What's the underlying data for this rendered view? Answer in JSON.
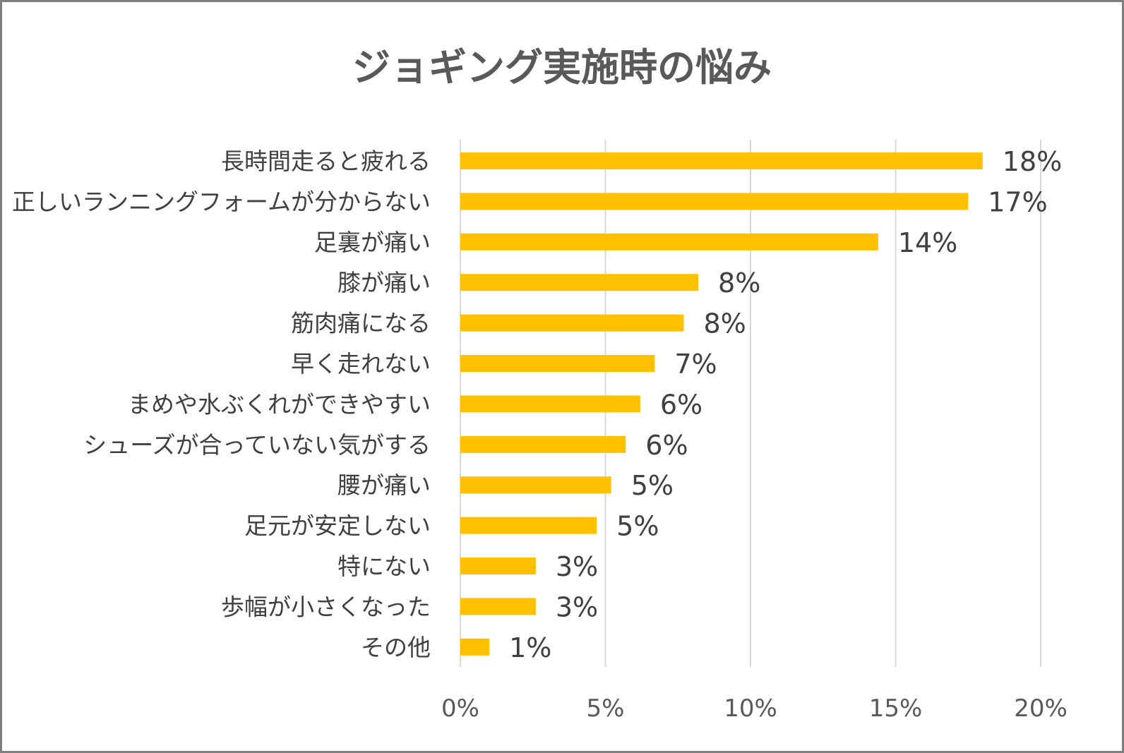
{
  "chart_data": {
    "type": "bar",
    "orientation": "horizontal",
    "title": "ジョギング実施時の悩み",
    "categories": [
      "長時間走ると疲れる",
      "正しいランニングフォームが分からない",
      "足裏が痛い",
      "膝が痛い",
      "筋肉痛になる",
      "早く走れない",
      "まめや水ぶくれができやすい",
      "シューズが合っていない気がする",
      "腰が痛い",
      "足元が安定しない",
      "特にない",
      "歩幅が小さくなった",
      "その他"
    ],
    "values": [
      18.0,
      17.5,
      14.4,
      8.2,
      7.7,
      6.7,
      6.2,
      5.7,
      5.2,
      4.7,
      2.6,
      2.6,
      1.0
    ],
    "value_labels": [
      "18%",
      "17%",
      "14%",
      "8%",
      "8%",
      "7%",
      "6%",
      "6%",
      "5%",
      "5%",
      "3%",
      "3%",
      "1%"
    ],
    "xlim": [
      0,
      20
    ],
    "x_ticks": [
      0,
      5,
      10,
      15,
      20
    ],
    "x_tick_labels": [
      "0%",
      "5%",
      "10%",
      "15%",
      "20%"
    ],
    "xlabel": "",
    "ylabel": "",
    "grid": "vertical",
    "legend": "none",
    "bar_color": "#ffc000"
  }
}
